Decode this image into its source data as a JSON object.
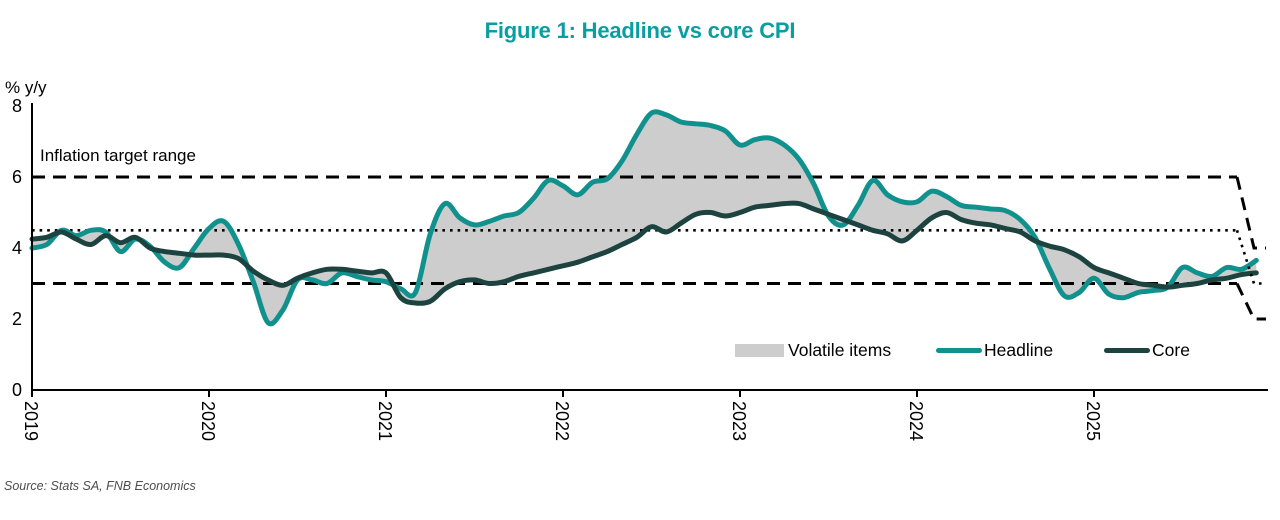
{
  "figure": {
    "title": "Figure 1: Headline vs core CPI"
  },
  "axis": {
    "y_unit_label": "% y/y",
    "y_ticks": [
      0,
      2,
      4,
      6,
      8
    ],
    "ylim": [
      0,
      8
    ],
    "x_ticks": [
      "2019",
      "2020",
      "2021",
      "2022",
      "2023",
      "2024",
      "2025"
    ]
  },
  "annotation": {
    "inflation_target_label": "Inflation target range"
  },
  "legend": [
    {
      "label": "Volatile items",
      "type": "area",
      "color": "#cdcdcd"
    },
    {
      "label": "Headline",
      "type": "line",
      "color": "#11918d"
    },
    {
      "label": "Core",
      "type": "line",
      "color": "#1d4340"
    }
  ],
  "source": {
    "text": "Source: Stats SA, FNB Economics"
  },
  "colors": {
    "title": "#0a9ea3",
    "axis": "#000000",
    "target_lines": "#000000",
    "fill": "#cdcdcd",
    "headline": "#11918d",
    "core": "#1d4340",
    "source": "#4d4d4d"
  },
  "chart_data": {
    "type": "line",
    "title": "Figure 1: Headline vs core CPI",
    "ylabel": "% y/y",
    "ylim": [
      0,
      8
    ],
    "grid": false,
    "legend_position": "inside lower right",
    "frequency": "monthly",
    "x_start": "2019-01",
    "x_end": "2025-12",
    "x_year_ticks": [
      2019,
      2020,
      2021,
      2022,
      2023,
      2024,
      2025
    ],
    "series": [
      {
        "name": "Headline",
        "color": "#11918d",
        "values": [
          4.0,
          4.1,
          4.5,
          4.35,
          4.5,
          4.45,
          3.9,
          4.25,
          4.05,
          3.6,
          3.45,
          4.0,
          4.55,
          4.75,
          4.1,
          3.05,
          1.9,
          2.25,
          3.1,
          3.1,
          3.0,
          3.3,
          3.2,
          3.1,
          3.05,
          2.85,
          2.75,
          4.4,
          5.25,
          4.85,
          4.65,
          4.75,
          4.9,
          5.0,
          5.4,
          5.9,
          5.75,
          5.5,
          5.85,
          5.95,
          6.45,
          7.2,
          7.8,
          7.75,
          7.55,
          7.5,
          7.45,
          7.3,
          6.9,
          7.05,
          7.1,
          6.9,
          6.5,
          5.8,
          4.9,
          4.65,
          5.2,
          5.9,
          5.5,
          5.3,
          5.3,
          5.6,
          5.45,
          5.2,
          5.15,
          5.1,
          5.05,
          4.8,
          4.3,
          3.4,
          2.65,
          2.75,
          3.15,
          2.7,
          2.6,
          2.75,
          2.8,
          2.9,
          3.45,
          3.3,
          3.2,
          3.45,
          3.4,
          3.65
        ]
      },
      {
        "name": "Core",
        "color": "#1d4340",
        "values": [
          4.25,
          4.3,
          4.45,
          4.25,
          4.1,
          4.35,
          4.15,
          4.3,
          4.0,
          3.9,
          3.85,
          3.8,
          3.8,
          3.8,
          3.7,
          3.35,
          3.1,
          2.95,
          3.15,
          3.3,
          3.4,
          3.4,
          3.35,
          3.3,
          3.3,
          2.6,
          2.45,
          2.5,
          2.85,
          3.05,
          3.1,
          3.0,
          3.05,
          3.2,
          3.3,
          3.4,
          3.5,
          3.6,
          3.75,
          3.9,
          4.1,
          4.3,
          4.6,
          4.45,
          4.7,
          4.95,
          5.0,
          4.9,
          5.0,
          5.15,
          5.2,
          5.25,
          5.25,
          5.1,
          4.95,
          4.8,
          4.65,
          4.5,
          4.4,
          4.2,
          4.5,
          4.85,
          5.0,
          4.8,
          4.7,
          4.65,
          4.55,
          4.45,
          4.2,
          4.05,
          3.95,
          3.75,
          3.45,
          3.3,
          3.15,
          3.0,
          2.95,
          2.9,
          2.95,
          3.0,
          3.1,
          3.15,
          3.25,
          3.3
        ]
      }
    ],
    "fill_between": {
      "name": "Volatile items",
      "between": [
        "Headline",
        "Core"
      ],
      "color": "#cdcdcd"
    },
    "target_lines": [
      {
        "name": "upper",
        "level": 6,
        "style": "dashed",
        "drops_to": 4
      },
      {
        "name": "midpoint",
        "level": 4.5,
        "style": "dotted",
        "drops_to": 3
      },
      {
        "name": "lower",
        "level": 3,
        "style": "dashed",
        "drops_to": 2
      }
    ]
  }
}
